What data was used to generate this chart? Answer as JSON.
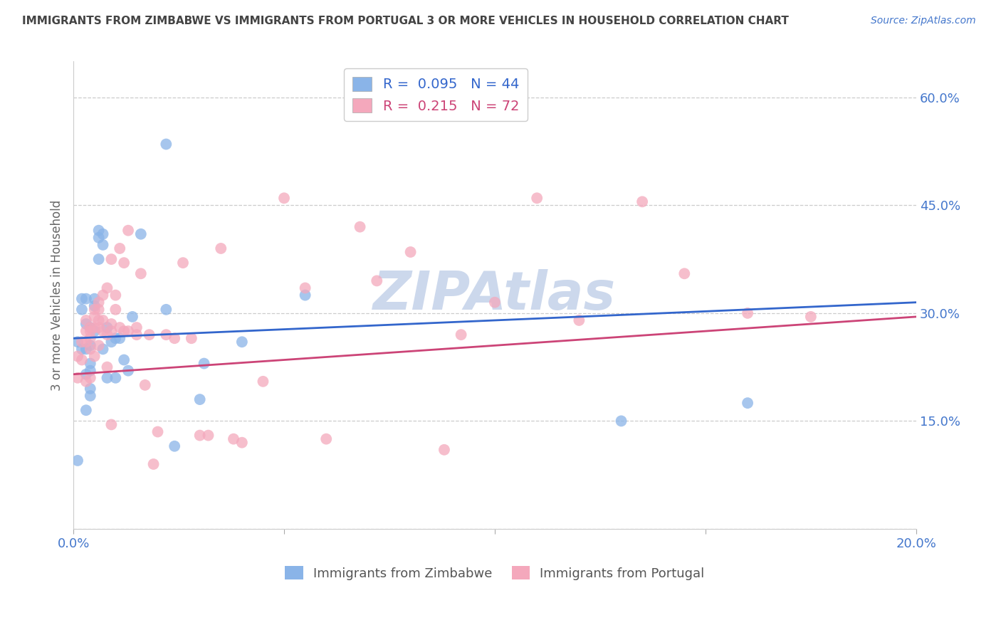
{
  "title": "IMMIGRANTS FROM ZIMBABWE VS IMMIGRANTS FROM PORTUGAL 3 OR MORE VEHICLES IN HOUSEHOLD CORRELATION CHART",
  "source": "Source: ZipAtlas.com",
  "ylabel_label": "3 or more Vehicles in Household",
  "x_ticks": [
    0.0,
    0.05,
    0.1,
    0.15,
    0.2
  ],
  "x_tick_labels": [
    "0.0%",
    "",
    "",
    "",
    "20.0%"
  ],
  "y_ticks": [
    0.0,
    0.15,
    0.3,
    0.45,
    0.6
  ],
  "y_tick_labels": [
    "",
    "15.0%",
    "30.0%",
    "45.0%",
    "60.0%"
  ],
  "xlim": [
    0.0,
    0.2
  ],
  "ylim": [
    0.0,
    0.65
  ],
  "zimbabwe_color": "#8ab4e8",
  "portugal_color": "#f4a8bc",
  "zimbabwe_line_color": "#3366cc",
  "portugal_line_color": "#cc4477",
  "legend_zimbabwe_R": "0.095",
  "legend_zimbabwe_N": "44",
  "legend_portugal_R": "0.215",
  "legend_portugal_N": "72",
  "legend_label_zimbabwe": "Immigrants from Zimbabwe",
  "legend_label_portugal": "Immigrants from Portugal",
  "watermark": "ZIPAtlas",
  "watermark_color": "#ccd8ec",
  "axis_label_color": "#4477cc",
  "title_color": "#444444",
  "grid_color": "#cccccc",
  "background_color": "#ffffff",
  "zimbabwe_x": [
    0.001,
    0.001,
    0.002,
    0.002,
    0.002,
    0.003,
    0.003,
    0.003,
    0.003,
    0.003,
    0.004,
    0.004,
    0.004,
    0.004,
    0.004,
    0.004,
    0.005,
    0.005,
    0.005,
    0.006,
    0.006,
    0.006,
    0.007,
    0.007,
    0.007,
    0.008,
    0.008,
    0.009,
    0.01,
    0.01,
    0.011,
    0.012,
    0.013,
    0.014,
    0.016,
    0.022,
    0.022,
    0.024,
    0.03,
    0.031,
    0.04,
    0.055,
    0.13,
    0.16
  ],
  "zimbabwe_y": [
    0.095,
    0.26,
    0.25,
    0.305,
    0.32,
    0.285,
    0.32,
    0.25,
    0.215,
    0.165,
    0.28,
    0.255,
    0.23,
    0.22,
    0.195,
    0.185,
    0.32,
    0.31,
    0.275,
    0.415,
    0.405,
    0.375,
    0.41,
    0.395,
    0.25,
    0.28,
    0.21,
    0.26,
    0.265,
    0.21,
    0.265,
    0.235,
    0.22,
    0.295,
    0.41,
    0.535,
    0.305,
    0.115,
    0.18,
    0.23,
    0.26,
    0.325,
    0.15,
    0.175
  ],
  "portugal_x": [
    0.001,
    0.001,
    0.002,
    0.002,
    0.003,
    0.003,
    0.003,
    0.003,
    0.004,
    0.004,
    0.004,
    0.004,
    0.004,
    0.005,
    0.005,
    0.005,
    0.005,
    0.006,
    0.006,
    0.006,
    0.006,
    0.006,
    0.007,
    0.007,
    0.007,
    0.008,
    0.008,
    0.008,
    0.009,
    0.009,
    0.009,
    0.009,
    0.01,
    0.01,
    0.011,
    0.011,
    0.012,
    0.012,
    0.013,
    0.013,
    0.015,
    0.015,
    0.016,
    0.017,
    0.018,
    0.019,
    0.02,
    0.022,
    0.024,
    0.026,
    0.028,
    0.03,
    0.032,
    0.035,
    0.038,
    0.04,
    0.045,
    0.05,
    0.055,
    0.06,
    0.068,
    0.072,
    0.08,
    0.088,
    0.092,
    0.1,
    0.11,
    0.12,
    0.135,
    0.145,
    0.16,
    0.175
  ],
  "portugal_y": [
    0.24,
    0.21,
    0.26,
    0.235,
    0.29,
    0.275,
    0.26,
    0.205,
    0.28,
    0.275,
    0.265,
    0.25,
    0.21,
    0.305,
    0.295,
    0.28,
    0.24,
    0.315,
    0.305,
    0.29,
    0.28,
    0.255,
    0.325,
    0.29,
    0.275,
    0.335,
    0.27,
    0.225,
    0.375,
    0.285,
    0.275,
    0.145,
    0.325,
    0.305,
    0.39,
    0.28,
    0.37,
    0.275,
    0.415,
    0.275,
    0.28,
    0.27,
    0.355,
    0.2,
    0.27,
    0.09,
    0.135,
    0.27,
    0.265,
    0.37,
    0.265,
    0.13,
    0.13,
    0.39,
    0.125,
    0.12,
    0.205,
    0.46,
    0.335,
    0.125,
    0.42,
    0.345,
    0.385,
    0.11,
    0.27,
    0.315,
    0.46,
    0.29,
    0.455,
    0.355,
    0.3,
    0.295
  ]
}
